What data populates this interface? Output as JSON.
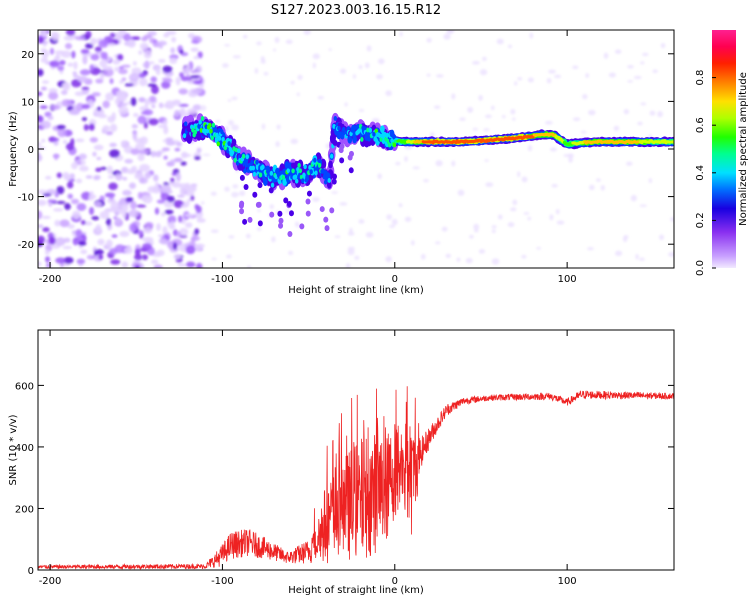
{
  "figure": {
    "title": "S127.2023.003.16.15.R12"
  },
  "chart_data": [
    {
      "type": "heatmap",
      "title": "S127.2023.003.16.15.R12",
      "xlabel": "Height of straight line (km)",
      "ylabel": "Frequency (Hz)",
      "xlim": [
        -207,
        162
      ],
      "ylim": [
        -25,
        25
      ],
      "xticks": [
        -200,
        -100,
        0,
        100
      ],
      "yticks": [
        -20,
        -10,
        0,
        10,
        20
      ],
      "grid": false,
      "colorbar": {
        "label": "Normalized spectral amplitude",
        "range": [
          0,
          1
        ],
        "ticks": [
          "0.0",
          "0.2",
          "0.4",
          "0.6",
          "0.8"
        ],
        "colors": [
          "#e8d8ff",
          "#a050ff",
          "#4a00e8",
          "#0048ff",
          "#00d8ff",
          "#00ff80",
          "#30ff00",
          "#d0ff00",
          "#ffc000",
          "#ff5000",
          "#ff0040",
          "#ff1080"
        ]
      },
      "ridge": [
        {
          "x": -120,
          "y": 4,
          "a": 0.35
        },
        {
          "x": -110,
          "y": 4.5,
          "a": 0.45
        },
        {
          "x": -102,
          "y": 3,
          "a": 0.5
        },
        {
          "x": -95,
          "y": 0,
          "a": 0.45
        },
        {
          "x": -88,
          "y": -3,
          "a": 0.4
        },
        {
          "x": -80,
          "y": -4,
          "a": 0.4
        },
        {
          "x": -70,
          "y": -6,
          "a": 0.4
        },
        {
          "x": -60,
          "y": -5,
          "a": 0.45
        },
        {
          "x": -52,
          "y": -5.5,
          "a": 0.4
        },
        {
          "x": -45,
          "y": -3,
          "a": 0.4
        },
        {
          "x": -38,
          "y": -7,
          "a": 0.3
        },
        {
          "x": -35,
          "y": 5,
          "a": 0.35
        },
        {
          "x": -28,
          "y": 3,
          "a": 0.35
        },
        {
          "x": -20,
          "y": 3.5,
          "a": 0.4
        },
        {
          "x": -12,
          "y": 3,
          "a": 0.45
        },
        {
          "x": -5,
          "y": 2,
          "a": 0.4
        },
        {
          "x": 5,
          "y": 1.5,
          "a": 0.55
        },
        {
          "x": 20,
          "y": 1.5,
          "a": 0.85
        },
        {
          "x": 40,
          "y": 1.5,
          "a": 0.85
        },
        {
          "x": 60,
          "y": 2,
          "a": 0.8
        },
        {
          "x": 75,
          "y": 2.5,
          "a": 0.8
        },
        {
          "x": 85,
          "y": 3,
          "a": 0.75
        },
        {
          "x": 92,
          "y": 3,
          "a": 0.7
        },
        {
          "x": 100,
          "y": 1,
          "a": 0.55
        },
        {
          "x": 115,
          "y": 1.5,
          "a": 0.75
        },
        {
          "x": 135,
          "y": 1.5,
          "a": 0.7
        },
        {
          "x": 155,
          "y": 1.5,
          "a": 0.65
        },
        {
          "x": 162,
          "y": 1.5,
          "a": 0.6
        }
      ]
    },
    {
      "type": "line",
      "xlabel": "Height of straight line (km)",
      "ylabel": "SNR (10 * v/v)",
      "xlim": [
        -207,
        162
      ],
      "ylim": [
        0,
        780
      ],
      "xticks": [
        -200,
        -100,
        0,
        100
      ],
      "yticks": [
        0,
        200,
        400,
        600
      ],
      "grid": false,
      "line_color": "#ee2222",
      "envelope": [
        {
          "x": -207,
          "y": 10,
          "noise": 6
        },
        {
          "x": -110,
          "y": 12,
          "noise": 8
        },
        {
          "x": -102,
          "y": 40,
          "noise": 30
        },
        {
          "x": -95,
          "y": 80,
          "noise": 45
        },
        {
          "x": -85,
          "y": 90,
          "noise": 45
        },
        {
          "x": -75,
          "y": 70,
          "noise": 35
        },
        {
          "x": -62,
          "y": 40,
          "noise": 20
        },
        {
          "x": -50,
          "y": 60,
          "noise": 40
        },
        {
          "x": -40,
          "y": 150,
          "noise": 130
        },
        {
          "x": -30,
          "y": 200,
          "noise": 170
        },
        {
          "x": -20,
          "y": 230,
          "noise": 200
        },
        {
          "x": -12,
          "y": 250,
          "noise": 200
        },
        {
          "x": -5,
          "y": 260,
          "noise": 180
        },
        {
          "x": 0,
          "y": 330,
          "noise": 160
        },
        {
          "x": 5,
          "y": 340,
          "noise": 150
        },
        {
          "x": 10,
          "y": 290,
          "noise": 190
        },
        {
          "x": 15,
          "y": 380,
          "noise": 50
        },
        {
          "x": 22,
          "y": 450,
          "noise": 30
        },
        {
          "x": 30,
          "y": 520,
          "noise": 20
        },
        {
          "x": 40,
          "y": 550,
          "noise": 12
        },
        {
          "x": 55,
          "y": 560,
          "noise": 10
        },
        {
          "x": 90,
          "y": 565,
          "noise": 12
        },
        {
          "x": 100,
          "y": 545,
          "noise": 12
        },
        {
          "x": 108,
          "y": 570,
          "noise": 14
        },
        {
          "x": 162,
          "y": 565,
          "noise": 10
        }
      ]
    }
  ]
}
